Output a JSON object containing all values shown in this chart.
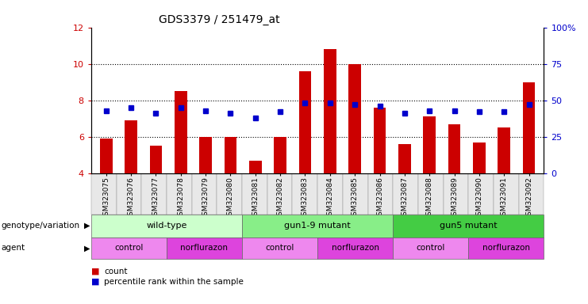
{
  "title": "GDS3379 / 251479_at",
  "samples": [
    "GSM323075",
    "GSM323076",
    "GSM323077",
    "GSM323078",
    "GSM323079",
    "GSM323080",
    "GSM323081",
    "GSM323082",
    "GSM323083",
    "GSM323084",
    "GSM323085",
    "GSM323086",
    "GSM323087",
    "GSM323088",
    "GSM323089",
    "GSM323090",
    "GSM323091",
    "GSM323092"
  ],
  "bar_values": [
    5.9,
    6.9,
    5.5,
    8.5,
    6.0,
    6.0,
    4.7,
    6.0,
    9.6,
    10.8,
    10.0,
    7.6,
    5.6,
    7.1,
    6.7,
    5.7,
    6.5,
    9.0
  ],
  "percentile_values": [
    43,
    45,
    41,
    45,
    43,
    41,
    38,
    42,
    48,
    48,
    47,
    46,
    41,
    43,
    43,
    42,
    42,
    47
  ],
  "bar_color": "#cc0000",
  "dot_color": "#0000cc",
  "ylim_left": [
    4,
    12
  ],
  "ylim_right": [
    0,
    100
  ],
  "yticks_left": [
    4,
    6,
    8,
    10,
    12
  ],
  "yticks_right": [
    0,
    25,
    50,
    75,
    100
  ],
  "left_tick_labels": [
    "4",
    "6",
    "8",
    "10",
    "12"
  ],
  "right_tick_labels": [
    "0",
    "25",
    "50",
    "75",
    "100%"
  ],
  "groups": [
    {
      "label": "wild-type",
      "start": 0,
      "end": 6,
      "color": "#ccffcc"
    },
    {
      "label": "gun1-9 mutant",
      "start": 6,
      "end": 12,
      "color": "#88ee88"
    },
    {
      "label": "gun5 mutant",
      "start": 12,
      "end": 18,
      "color": "#44cc44"
    }
  ],
  "agents": [
    {
      "label": "control",
      "start": 0,
      "end": 3
    },
    {
      "label": "norflurazon",
      "start": 3,
      "end": 6
    },
    {
      "label": "control",
      "start": 6,
      "end": 9
    },
    {
      "label": "norflurazon",
      "start": 9,
      "end": 12
    },
    {
      "label": "control",
      "start": 12,
      "end": 15
    },
    {
      "label": "norflurazon",
      "start": 15,
      "end": 18
    }
  ],
  "control_color": "#ee88ee",
  "norflurazon_color": "#dd44dd",
  "legend_items": [
    {
      "label": "count",
      "color": "#cc0000"
    },
    {
      "label": "percentile rank within the sample",
      "color": "#0000cc"
    }
  ],
  "genotype_label": "genotype/variation",
  "agent_label": "agent",
  "bar_width": 0.5,
  "axis_color_left": "#cc0000",
  "axis_color_right": "#0000cc"
}
